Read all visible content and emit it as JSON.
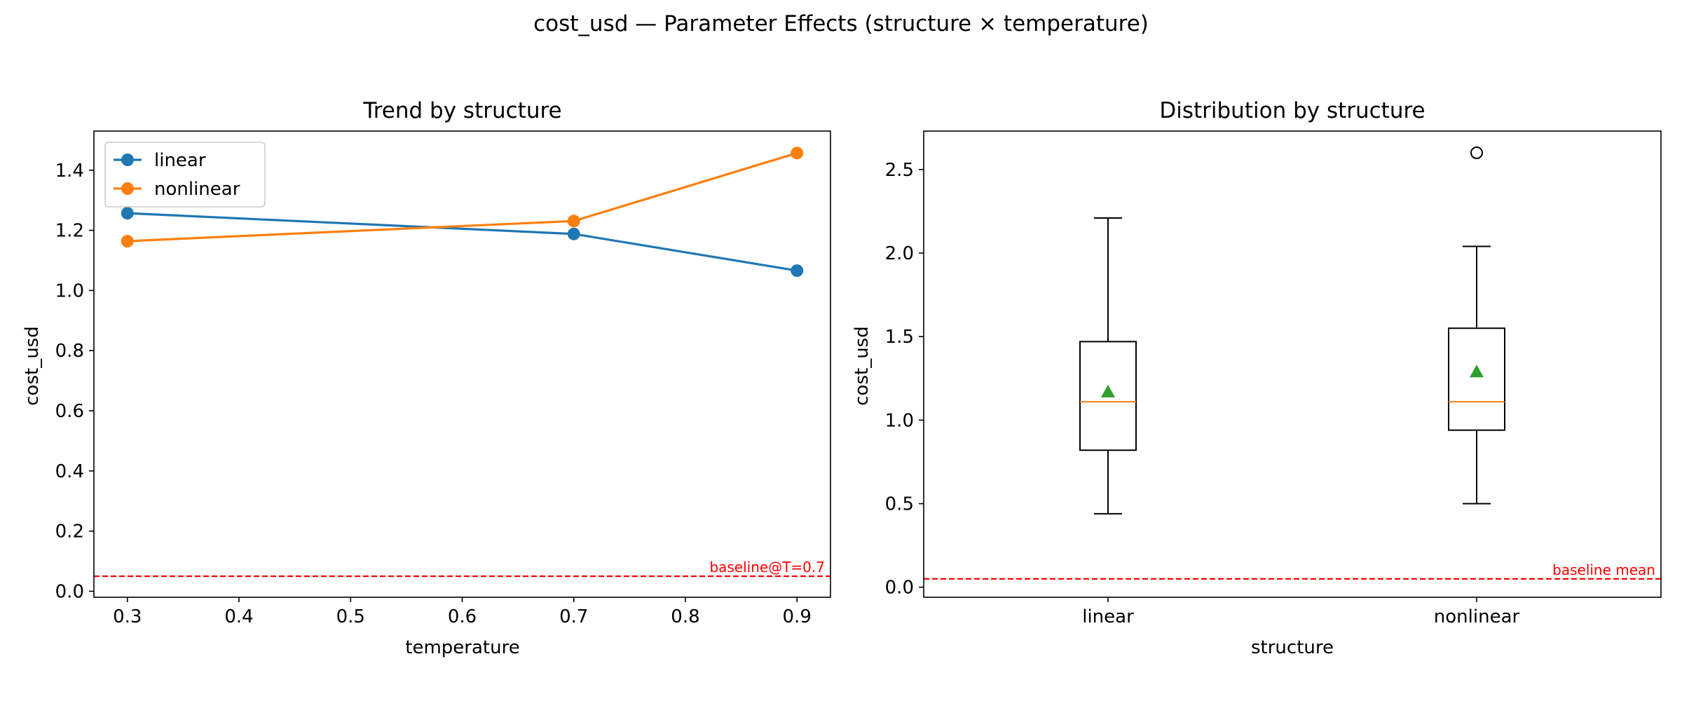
{
  "figure": {
    "title": "cost_usd — Parameter Effects (structure × temperature)"
  },
  "chart_data": [
    {
      "type": "line",
      "title": "Trend by structure",
      "xlabel": "temperature",
      "ylabel": "cost_usd",
      "x": [
        0.3,
        0.7,
        0.9
      ],
      "series": [
        {
          "name": "linear",
          "color": "#1f77b4",
          "values": [
            1.257,
            1.188,
            1.066
          ]
        },
        {
          "name": "nonlinear",
          "color": "#ff7f0e",
          "values": [
            1.164,
            1.231,
            1.457
          ]
        }
      ],
      "xlim": [
        0.27,
        0.93
      ],
      "ylim": [
        -0.02,
        1.53
      ],
      "xticks": [
        0.3,
        0.4,
        0.5,
        0.6,
        0.7,
        0.8,
        0.9
      ],
      "xtick_labels": [
        "0.3",
        "0.4",
        "0.5",
        "0.6",
        "0.7",
        "0.8",
        "0.9"
      ],
      "yticks": [
        0.0,
        0.2,
        0.4,
        0.6,
        0.8,
        1.0,
        1.2,
        1.4
      ],
      "ytick_labels": [
        "0.0",
        "0.2",
        "0.4",
        "0.6",
        "0.8",
        "1.0",
        "1.2",
        "1.4"
      ],
      "reference_line": {
        "value": 0.05,
        "label": "baseline@T=0.7",
        "color": "#ff0000"
      },
      "legend": "upper-left",
      "grid": false
    },
    {
      "type": "box",
      "title": "Distribution by structure",
      "xlabel": "structure",
      "ylabel": "cost_usd",
      "categories": [
        "linear",
        "nonlinear"
      ],
      "boxes": [
        {
          "whisker_low": 0.44,
          "q1": 0.82,
          "median": 1.11,
          "q3": 1.47,
          "whisker_high": 2.21,
          "mean": 1.17,
          "outliers": []
        },
        {
          "whisker_low": 0.5,
          "q1": 0.94,
          "median": 1.11,
          "q3": 1.55,
          "whisker_high": 2.04,
          "mean": 1.29,
          "outliers": [
            2.6
          ]
        }
      ],
      "median_color": "#ff7f0e",
      "mean_color": "#2ca02c",
      "ylim": [
        -0.06,
        2.73
      ],
      "yticks": [
        0.0,
        0.5,
        1.0,
        1.5,
        2.0,
        2.5
      ],
      "ytick_labels": [
        "0.0",
        "0.5",
        "1.0",
        "1.5",
        "2.0",
        "2.5"
      ],
      "reference_line": {
        "value": 0.05,
        "label": "baseline mean",
        "color": "#ff0000"
      },
      "grid": false
    }
  ]
}
